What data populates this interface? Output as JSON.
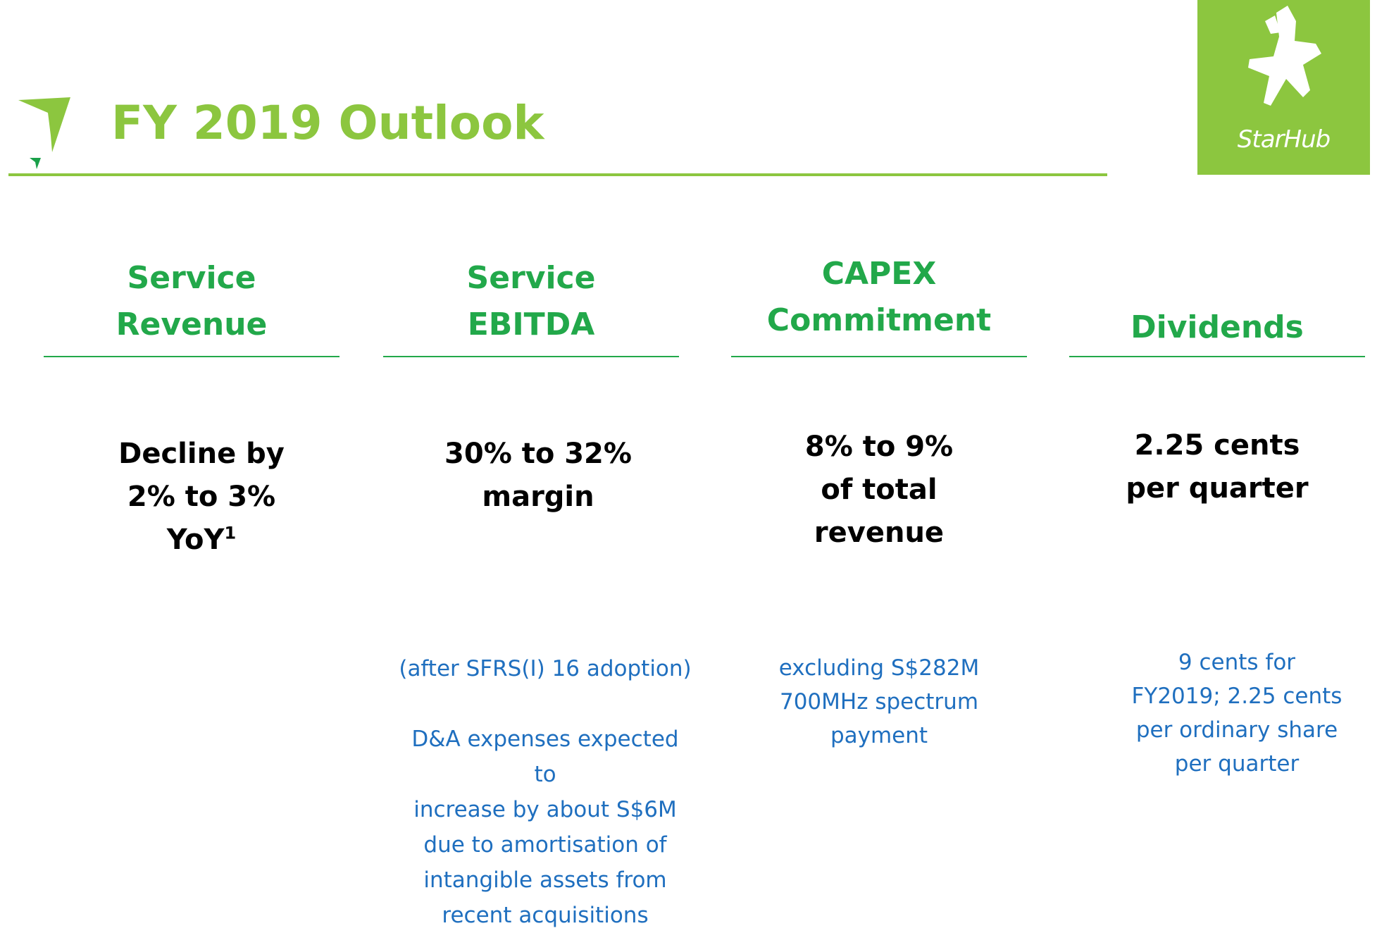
{
  "header": {
    "title": "FY 2019 Outlook",
    "brand_color": "#8cc63f"
  },
  "logo": {
    "text": "StarHub",
    "icon": "starhub-star-icon"
  },
  "columns": [
    {
      "heading_lines": [
        "Service",
        "Revenue"
      ],
      "value_lines": [
        "Decline by",
        "2% to 3%"
      ],
      "value_last": "YoY",
      "value_sup": "1",
      "note_lines": []
    },
    {
      "heading_lines": [
        "Service",
        "EBITDA"
      ],
      "value_lines": [
        "30% to 32%",
        "margin"
      ],
      "note_lines": [
        "(after SFRS(I) 16  adoption)",
        "",
        "D&A expenses expected to",
        "increase by about S$6M",
        "due to amortisation of",
        "intangible assets from",
        "recent acquisitions"
      ]
    },
    {
      "heading_lines": [
        "CAPEX",
        "Commitment"
      ],
      "value_lines": [
        "8% to 9%",
        "of total",
        "revenue"
      ],
      "note_lines": [
        "excluding S$282M",
        "700MHz spectrum",
        "payment"
      ]
    },
    {
      "heading_lines": [
        "Dividends"
      ],
      "value_lines": [
        "2.25 cents",
        "per quarter"
      ],
      "note_lines": [
        "9 cents for",
        "FY2019; 2.25 cents",
        "per  ordinary share",
        "per  quarter"
      ]
    }
  ],
  "colors": {
    "heading": "#22a84a",
    "value": "#000000",
    "note": "#1f6fbf"
  }
}
